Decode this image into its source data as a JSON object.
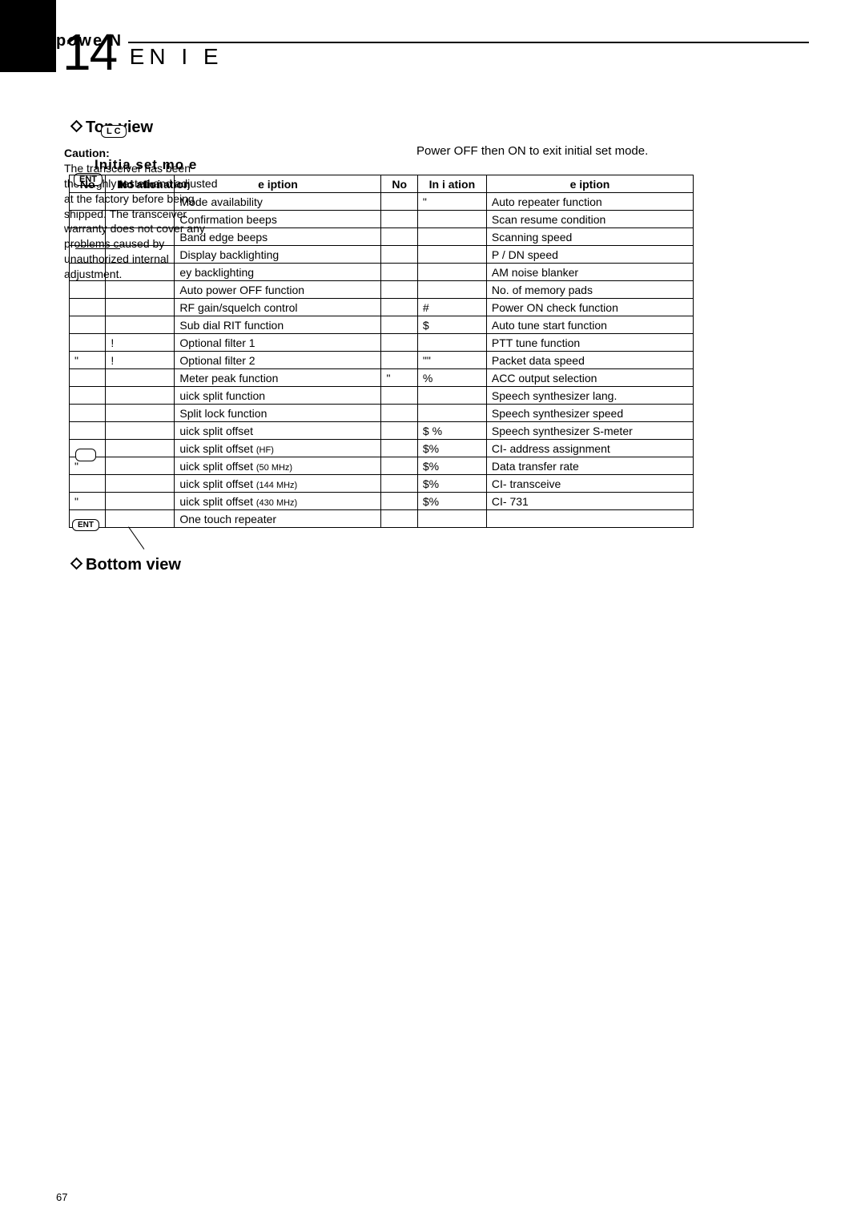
{
  "chapter": {
    "number": "14",
    "title": "EN   I   E"
  },
  "sections": {
    "topview": "Top view",
    "power": "powe    N",
    "bottomview": "Bottom view"
  },
  "lock_key": "L  C",
  "enter_key": "ENT",
  "caution": {
    "label": "Caution:",
    "body": "The transceiver has been thoroughly tested and adjusted at the factory before being shipped. The transceiver warranty does not cover any problems caused by unauthorized internal adjustment."
  },
  "overlay1": "Initia     set mo   e",
  "exit_note": "Power OFF then ON to exit initial set mode.",
  "col1_h1": "No",
  "col1_h2": "In i  ation",
  "table": {
    "headers": [
      "No",
      "In i  ation",
      "e     iption",
      "No",
      "In i  ation",
      "e     iption"
    ],
    "rows": [
      [
        "",
        "",
        "Mode availability",
        "",
        "\"",
        "Auto repeater function"
      ],
      [
        "",
        "",
        "Confirmation beeps",
        "",
        "",
        "Scan resume condition"
      ],
      [
        "",
        "",
        "Band edge beeps",
        "",
        "",
        "Scanning speed"
      ],
      [
        "",
        "",
        "Display backlighting",
        "",
        "",
        "  P / DN  speed"
      ],
      [
        "",
        "",
        " ey backlighting",
        "",
        "",
        "AM noise blanker"
      ],
      [
        "",
        "",
        "Auto power OFF function",
        "",
        "",
        "No. of memory pads"
      ],
      [
        "",
        "",
        "RF gain/squelch control",
        "",
        "#",
        "Power ON check function"
      ],
      [
        "",
        "",
        "Sub dial RIT function",
        "",
        "$",
        "Auto tune start function"
      ],
      [
        "",
        "!",
        "Optional filter 1",
        "",
        "",
        "PTT tune function"
      ],
      [
        "\"",
        "!",
        "Optional filter 2",
        "",
        "  \"\"",
        "Packet data speed"
      ],
      [
        "",
        "",
        "Meter peak function",
        "\"",
        "%",
        "ACC output selection"
      ],
      [
        "",
        "",
        " uick split function",
        "",
        "",
        "Speech synthesizer lang."
      ],
      [
        "",
        "",
        "Split lock function",
        "",
        "",
        "Speech synthesizer speed"
      ],
      [
        "",
        "",
        " uick split offset",
        "",
        "$ %",
        "Speech synthesizer S-meter"
      ],
      [
        "",
        "",
        " uick split offset (HF)",
        "",
        " $%",
        "CI-   address assignment"
      ],
      [
        "\"",
        "",
        " uick split offset (50 MHz)",
        "",
        " $%",
        "Data transfer rate"
      ],
      [
        "",
        "",
        " uick split offset (144 MHz)",
        "",
        " $%",
        "CI-   transceive"
      ],
      [
        "\"",
        "",
        " uick split offset (430 MHz)",
        "",
        " $%",
        "CI-  731"
      ],
      [
        "",
        "",
        "One touch repeater",
        "",
        "",
        ""
      ]
    ]
  },
  "ent_key_bottom": "ENT",
  "page_number": "67",
  "colors": {
    "text": "#000000",
    "background": "#ffffff",
    "border": "#000000"
  },
  "fonts": {
    "body_size_pt": 11,
    "header_size_pt": 15,
    "chapter_num_pt": 48
  }
}
